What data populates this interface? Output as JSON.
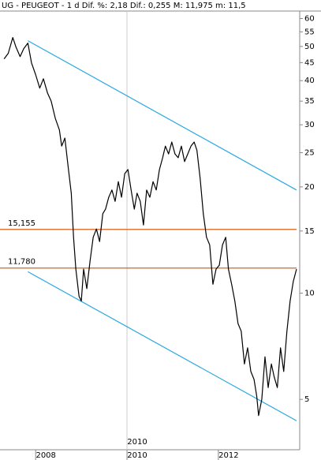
{
  "chart_data": {
    "type": "line",
    "title": "UG - PEUGEOT -  1 d Dif. %: 2,18 Dif.: 0,255 M: 11,975 m: 11,5",
    "log_scale": true,
    "xlim": [
      2007.22,
      2013.78
    ],
    "xticks": [
      2008,
      2010,
      2012
    ],
    "ylim": [
      3.6,
      63
    ],
    "yticks": [
      5,
      10,
      15,
      20,
      25,
      30,
      35,
      40,
      45,
      50,
      55,
      60
    ],
    "series": [
      {
        "color": "#000000",
        "x": [
          2007.31,
          2007.4,
          2007.5,
          2007.57,
          2007.66,
          2007.74,
          2007.83,
          2007.91,
          2008.0,
          2008.09,
          2008.17,
          2008.26,
          2008.34,
          2008.43,
          2008.52,
          2008.57,
          2008.64,
          2008.71,
          2008.78,
          2008.83,
          2008.88,
          2008.95,
          2009.0,
          2009.05,
          2009.12,
          2009.19,
          2009.26,
          2009.33,
          2009.4,
          2009.47,
          2009.53,
          2009.6,
          2009.67,
          2009.74,
          2009.81,
          2009.88,
          2009.95,
          2010.02,
          2010.09,
          2010.16,
          2010.22,
          2010.29,
          2010.36,
          2010.43,
          2010.5,
          2010.57,
          2010.64,
          2010.71,
          2010.78,
          2010.84,
          2010.91,
          2010.98,
          2011.05,
          2011.12,
          2011.19,
          2011.26,
          2011.33,
          2011.4,
          2011.47,
          2011.53,
          2011.6,
          2011.67,
          2011.74,
          2011.81,
          2011.88,
          2011.95,
          2012.02,
          2012.09,
          2012.16,
          2012.22,
          2012.29,
          2012.36,
          2012.43,
          2012.5,
          2012.57,
          2012.64,
          2012.71,
          2012.78,
          2012.84,
          2012.88,
          2012.95,
          2013.02,
          2013.09,
          2013.16,
          2013.22,
          2013.29,
          2013.36,
          2013.43,
          2013.5,
          2013.57,
          2013.64,
          2013.71
        ],
        "values": [
          46.1,
          47.8,
          53.0,
          49.8,
          46.8,
          49.3,
          51.1,
          44.9,
          41.6,
          38.1,
          40.5,
          36.9,
          35.0,
          31.3,
          29.0,
          26.1,
          27.5,
          22.9,
          19.2,
          14.4,
          11.7,
          9.8,
          9.5,
          11.7,
          10.3,
          12.3,
          14.4,
          15.2,
          14.0,
          16.8,
          17.3,
          18.7,
          19.6,
          18.2,
          20.7,
          18.7,
          21.8,
          22.4,
          19.6,
          17.3,
          19.2,
          18.2,
          15.6,
          19.6,
          18.7,
          20.7,
          19.6,
          22.4,
          24.2,
          26.1,
          24.8,
          26.8,
          24.8,
          24.2,
          26.1,
          23.6,
          24.8,
          26.1,
          26.8,
          25.4,
          21.2,
          16.8,
          14.4,
          13.7,
          10.6,
          11.7,
          12.0,
          13.7,
          14.4,
          11.7,
          10.6,
          9.5,
          8.2,
          7.8,
          6.3,
          7.0,
          6.0,
          5.7,
          5.1,
          4.5,
          5.0,
          6.6,
          5.4,
          6.3,
          5.8,
          5.4,
          7.0,
          6.0,
          7.8,
          9.5,
          10.8,
          11.7
        ]
      }
    ],
    "hlines": [
      {
        "value": 15.155,
        "label": "15,155",
        "color": "#e0601a"
      },
      {
        "value": 11.78,
        "label": "11,780",
        "color": "#e0601a"
      }
    ],
    "trendlines": [
      {
        "x": [
          2007.83,
          2013.71
        ],
        "values": [
          51.9,
          19.6
        ],
        "color": "#29a8e0"
      },
      {
        "x": [
          2007.83,
          2013.71
        ],
        "values": [
          11.5,
          4.35
        ],
        "color": "#29a8e0"
      }
    ]
  }
}
